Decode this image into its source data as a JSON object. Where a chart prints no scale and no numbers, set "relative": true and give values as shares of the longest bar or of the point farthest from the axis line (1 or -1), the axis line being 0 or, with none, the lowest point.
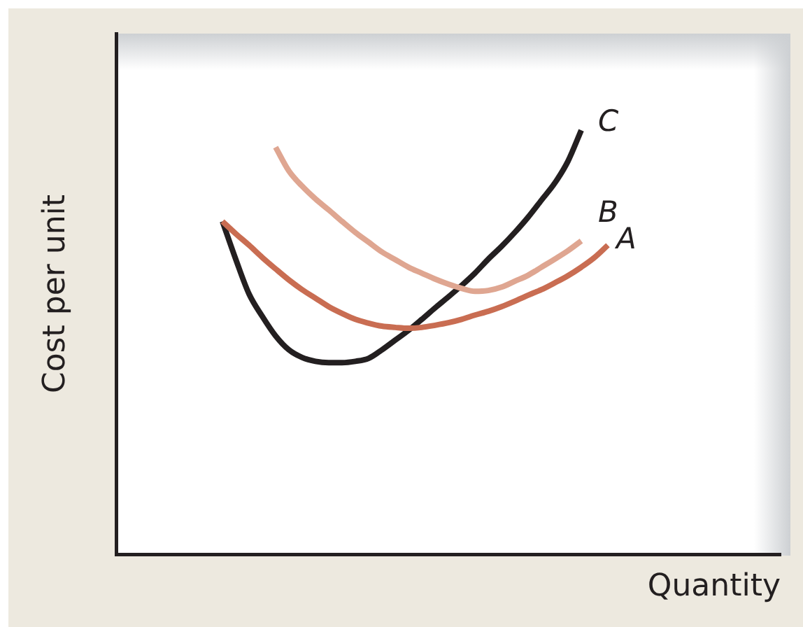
{
  "chart_data": {
    "type": "line",
    "relative": true,
    "xlabel": "Quantity",
    "ylabel": "Cost per unit",
    "marker": "none",
    "legend": false,
    "grid": false,
    "tick_labels": false,
    "categories": [
      null,
      null,
      null,
      null,
      null,
      null,
      null,
      null,
      null,
      null,
      null,
      null,
      null,
      null,
      null,
      null,
      null,
      null,
      null,
      null,
      null,
      null,
      null,
      null,
      null,
      null,
      null,
      null,
      null,
      null,
      null,
      null,
      null,
      null,
      null,
      null,
      null,
      null,
      null,
      null,
      null,
      null,
      null,
      null,
      null,
      null,
      null,
      null,
      null,
      null,
      null
    ],
    "series": [
      {
        "name": "A",
        "color": "#c96d52",
        "values": [
          null,
          null,
          null,
          null,
          null,
          null,
          null,
          null,
          0.785,
          0.756,
          0.729,
          0.7,
          0.673,
          0.647,
          0.624,
          0.604,
          0.584,
          0.568,
          0.554,
          0.545,
          0.538,
          0.535,
          0.533,
          0.535,
          0.54,
          0.546,
          0.554,
          0.564,
          0.573,
          0.584,
          0.597,
          0.611,
          0.624,
          0.64,
          0.657,
          0.677,
          0.7,
          0.729,
          null,
          null,
          null,
          null,
          null,
          null,
          null,
          null,
          null,
          null,
          null,
          null,
          null
        ]
      },
      {
        "name": "B",
        "color": "#dfa691",
        "values": [
          null,
          null,
          null,
          null,
          null,
          null,
          null,
          null,
          null,
          null,
          null,
          null,
          0.96,
          0.904,
          0.868,
          0.838,
          0.812,
          0.785,
          0.759,
          0.736,
          0.713,
          0.695,
          0.677,
          0.663,
          0.649,
          0.637,
          0.627,
          0.62,
          0.622,
          0.63,
          0.644,
          0.658,
          0.677,
          0.696,
          0.716,
          0.739,
          null,
          null,
          null,
          null,
          null,
          null,
          null,
          null,
          null,
          null,
          null,
          null,
          null,
          null,
          null
        ]
      },
      {
        "name": "C",
        "color": "#231f20",
        "values": [
          null,
          null,
          null,
          null,
          null,
          null,
          null,
          null,
          0.785,
          0.696,
          0.614,
          0.561,
          0.515,
          0.482,
          0.464,
          0.455,
          0.452,
          0.452,
          0.455,
          0.462,
          0.482,
          0.505,
          0.528,
          0.554,
          0.581,
          0.607,
          0.634,
          0.663,
          0.696,
          0.726,
          0.759,
          0.795,
          0.835,
          0.875,
          0.927,
          1,
          null,
          null,
          null,
          null,
          null,
          null,
          null,
          null,
          null,
          null,
          null,
          null,
          null,
          null,
          null
        ]
      }
    ]
  }
}
